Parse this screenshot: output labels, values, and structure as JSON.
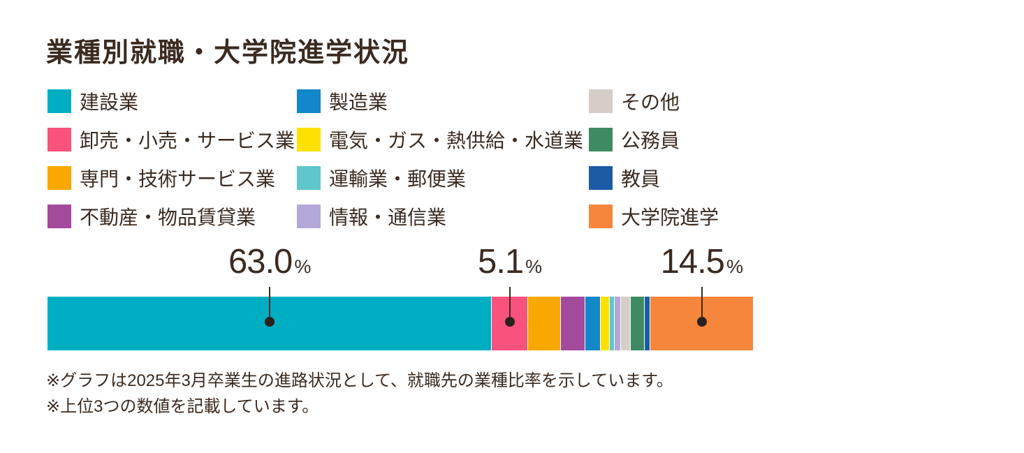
{
  "title": "業種別就職・大学院進学状況",
  "legend": {
    "columns": [
      {
        "items": [
          {
            "label": "建設業",
            "color": "#00aec3"
          },
          {
            "label": "卸売・小売・サービス業",
            "color": "#f8527d"
          },
          {
            "label": "専門・技術サービス業",
            "color": "#f8a800"
          },
          {
            "label": "不動産・物品賃貸業",
            "color": "#a44a9c"
          }
        ]
      },
      {
        "items": [
          {
            "label": "製造業",
            "color": "#1287c9"
          },
          {
            "label": "電気・ガス・熱供給・水道業",
            "color": "#ffe100"
          },
          {
            "label": "運輸業・郵便業",
            "color": "#5fc6cc"
          },
          {
            "label": "情報・通信業",
            "color": "#b3a8d7"
          }
        ]
      },
      {
        "items": [
          {
            "label": "その他",
            "color": "#d5cdc8"
          },
          {
            "label": "公務員",
            "color": "#3e8a62"
          },
          {
            "label": "教員",
            "color": "#1d5ca4"
          },
          {
            "label": "大学院進学",
            "color": "#f6863b"
          }
        ]
      }
    ]
  },
  "chart_data": {
    "type": "bar",
    "subtype": "horizontal-stacked-100percent",
    "unit": "%",
    "title": "業種別就職・大学院進学状況",
    "legend_position": "top",
    "axis": "none",
    "note": "Only the top 3 segment values are labeled in the figure; unlabeled segment values are estimated from segment widths.",
    "series": [
      {
        "name": "建設業",
        "color": "#00aec3",
        "value": 63.0,
        "value_label": "63.0",
        "labeled": true
      },
      {
        "name": "卸売・小売・サービス業",
        "color": "#f8527d",
        "value": 5.1,
        "value_label": "5.1",
        "labeled": true
      },
      {
        "name": "専門・技術サービス業",
        "color": "#f8a800",
        "value": 4.7,
        "labeled": false
      },
      {
        "name": "不動産・物品賃貸業",
        "color": "#a44a9c",
        "value": 3.4,
        "labeled": false
      },
      {
        "name": "製造業",
        "color": "#1287c9",
        "value": 2.2,
        "labeled": false
      },
      {
        "name": "電気・ガス・熱供給・水道業",
        "color": "#ffe100",
        "value": 1.3,
        "labeled": false
      },
      {
        "name": "運輸業・郵便業",
        "color": "#5fc6cc",
        "value": 0.7,
        "labeled": false
      },
      {
        "name": "情報・通信業",
        "color": "#b3a8d7",
        "value": 0.9,
        "labeled": false
      },
      {
        "name": "その他",
        "color": "#d5cdc8",
        "value": 1.4,
        "labeled": false
      },
      {
        "name": "公務員",
        "color": "#3e8a62",
        "value": 2.0,
        "labeled": false
      },
      {
        "name": "教員",
        "color": "#1d5ca4",
        "value": 0.8,
        "labeled": false
      },
      {
        "name": "大学院進学",
        "color": "#f6863b",
        "value": 14.5,
        "value_label": "14.5",
        "labeled": true
      }
    ]
  },
  "footnotes": {
    "lines": [
      "※グラフは2025年3月卒業生の進路状況として、就職先の業種比率を示しています。",
      "※上位3つの数値を記載しています。"
    ]
  },
  "colors": {
    "text": "#3b2b20",
    "background": "#ffffff"
  }
}
